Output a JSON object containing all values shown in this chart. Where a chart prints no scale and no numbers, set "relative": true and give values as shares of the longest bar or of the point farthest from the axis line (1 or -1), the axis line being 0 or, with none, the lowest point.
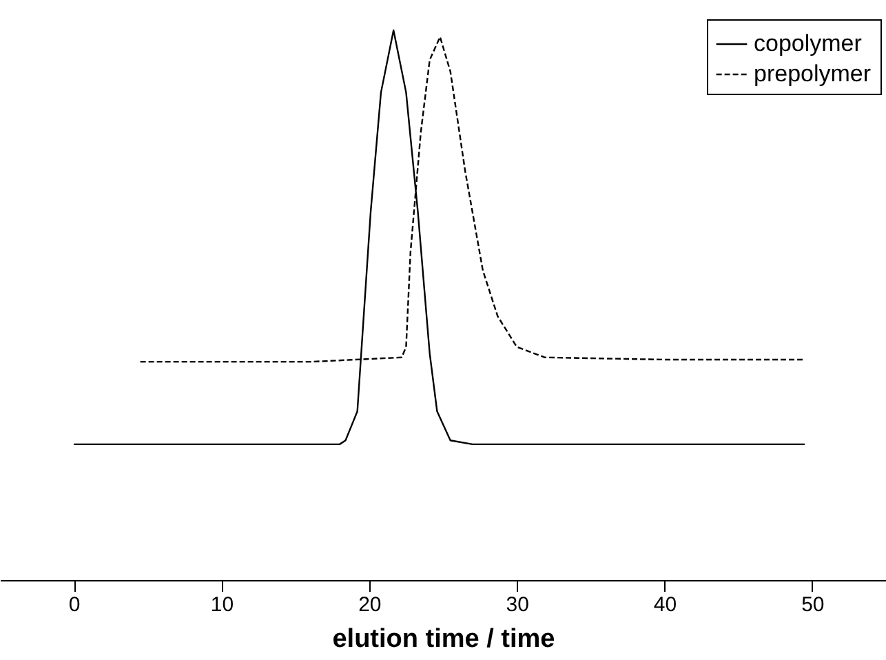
{
  "chart_data": {
    "type": "line",
    "xlabel": "elution time / time",
    "xlim": [
      -5,
      55
    ],
    "xticks": [
      0,
      10,
      20,
      30,
      40,
      50
    ],
    "relative": true,
    "grid": false,
    "legend": "top right",
    "marker": "none",
    "series": [
      {
        "name": "copolymer",
        "color": "#000000",
        "line_style": "solid",
        "x": [
          0,
          10,
          18.0,
          18.4,
          19.2,
          20.1,
          20.8,
          21.65,
          22.5,
          23.3,
          24.1,
          24.6,
          25.5,
          27,
          35,
          49.5
        ],
        "values": [
          0.247,
          0.247,
          0.247,
          0.254,
          0.307,
          0.669,
          0.887,
          1.0,
          0.887,
          0.669,
          0.412,
          0.307,
          0.254,
          0.247,
          0.247,
          0.247
        ]
      },
      {
        "name": "prepolymer",
        "color": "#000000",
        "line_style": "dashed",
        "x": [
          4.5,
          16,
          22.2,
          22.5,
          22.8,
          23.5,
          24.1,
          24.8,
          25.5,
          26.5,
          27.7,
          28.7,
          30,
          31.9,
          40,
          49.5
        ],
        "values": [
          0.397,
          0.397,
          0.405,
          0.424,
          0.597,
          0.815,
          0.946,
          0.988,
          0.925,
          0.744,
          0.563,
          0.48,
          0.424,
          0.405,
          0.401,
          0.401
        ]
      }
    ]
  }
}
